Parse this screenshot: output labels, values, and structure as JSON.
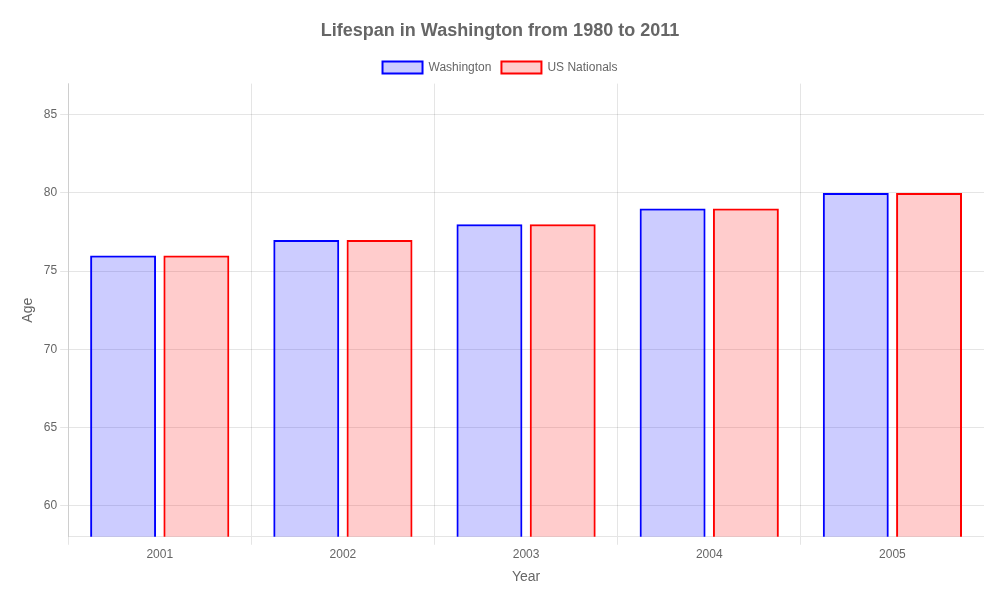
{
  "chart_data": {
    "type": "bar",
    "title": "Lifespan in Washington from 1980 to 2011",
    "x_label": "Year",
    "y_label": "Age",
    "categories": [
      "2001",
      "2002",
      "2003",
      "2004",
      "2005"
    ],
    "series": [
      {
        "name": "Washington",
        "color": "#0000ff",
        "values": [
          76,
          77,
          78,
          79,
          80
        ]
      },
      {
        "name": "US Nationals",
        "color": "#ff0000",
        "values": [
          76,
          77,
          78,
          79,
          80
        ]
      }
    ],
    "ylim": [
      58,
      87
    ],
    "yticks": [
      60,
      65,
      70,
      75,
      80,
      85
    ],
    "grid": true,
    "legend": "top"
  }
}
